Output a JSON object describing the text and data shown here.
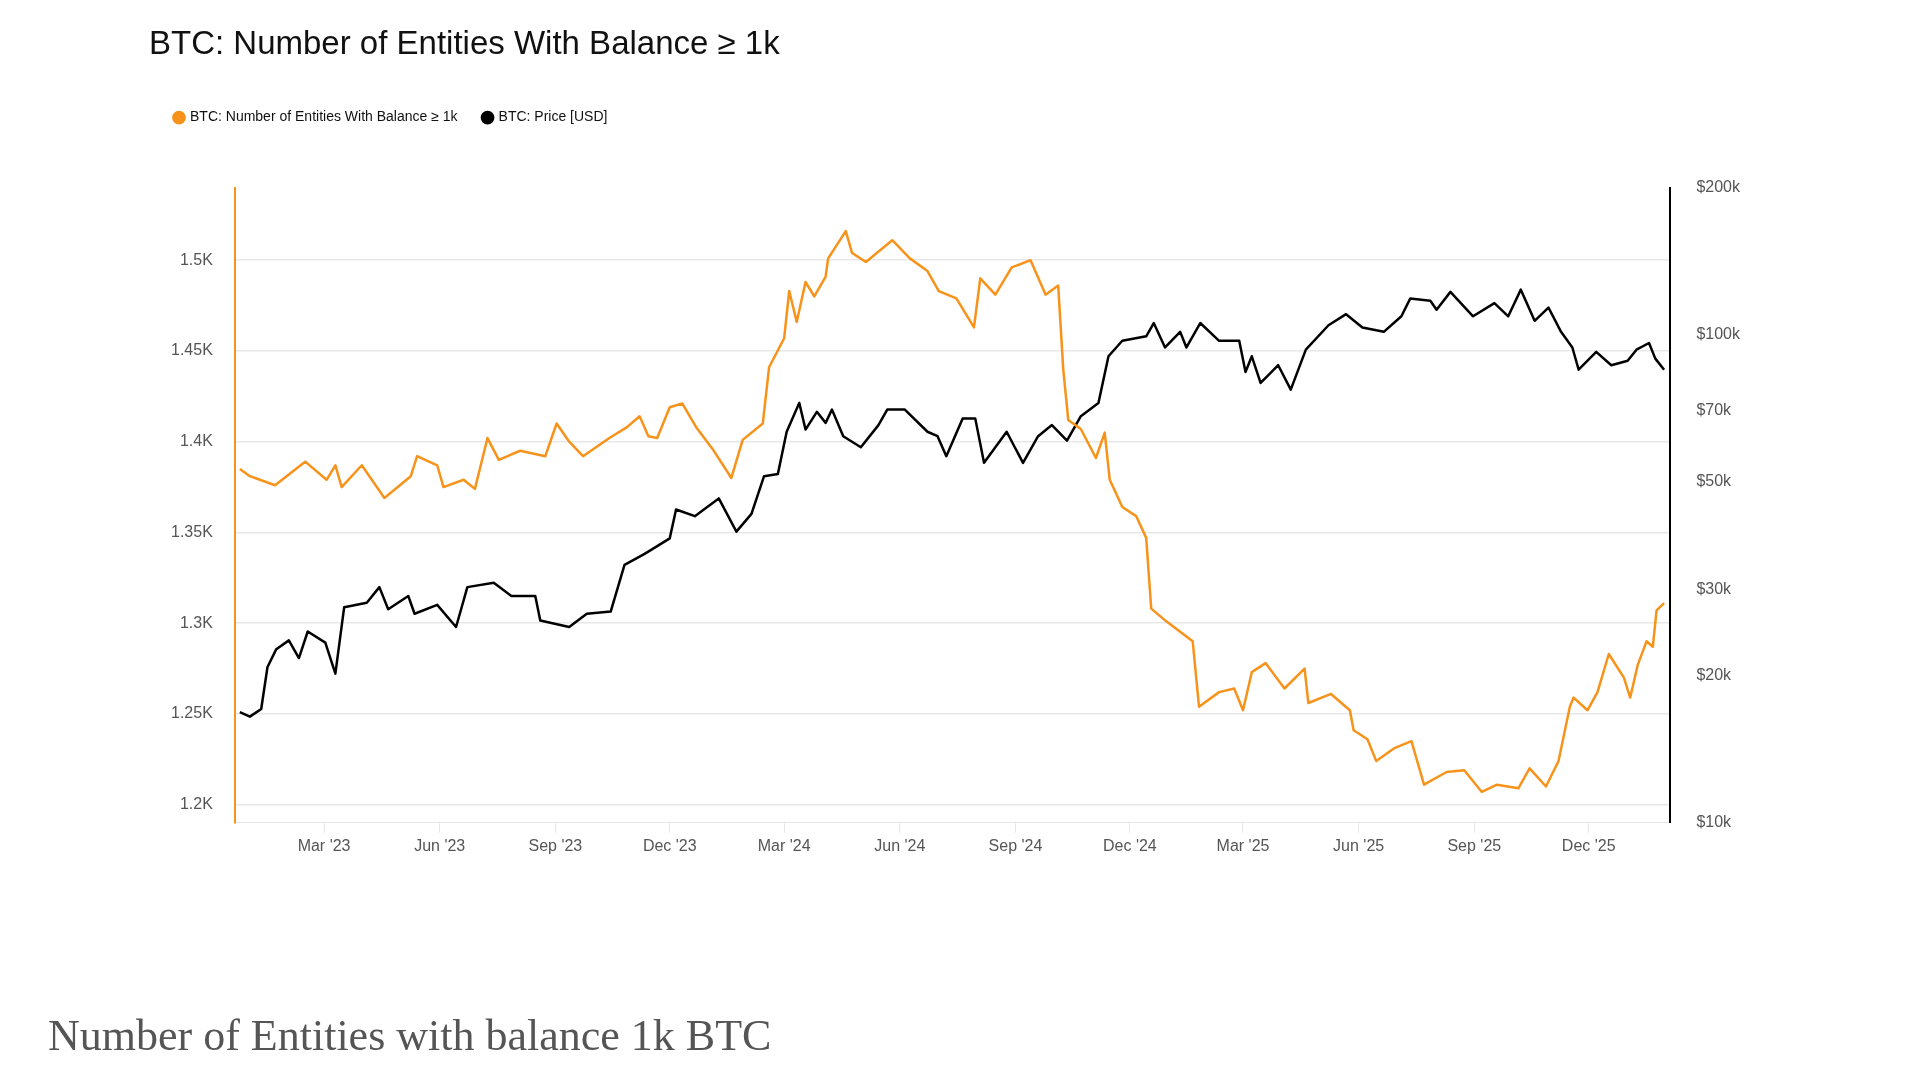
{
  "chart_data": {
    "type": "line",
    "title": "BTC: Number of Entities With Balance ≥ 1k",
    "legend": "top left",
    "grid": "y",
    "marker": "none",
    "line_style": "solid",
    "xlim": [
      "2022-12-20",
      "2026-02-04"
    ],
    "xticks": [
      {
        "value": "2023-03-01",
        "label": "Mar '23"
      },
      {
        "value": "2023-06-01",
        "label": "Jun '23"
      },
      {
        "value": "2023-09-01",
        "label": "Sep '23"
      },
      {
        "value": "2023-12-01",
        "label": "Dec '23"
      },
      {
        "value": "2024-03-01",
        "label": "Mar '24"
      },
      {
        "value": "2024-06-01",
        "label": "Jun '24"
      },
      {
        "value": "2024-09-01",
        "label": "Sep '24"
      },
      {
        "value": "2024-12-01",
        "label": "Dec '24"
      },
      {
        "value": "2025-03-01",
        "label": "Mar '25"
      },
      {
        "value": "2025-06-01",
        "label": "Jun '25"
      },
      {
        "value": "2025-09-01",
        "label": "Sep '25"
      },
      {
        "value": "2025-12-01",
        "label": "Dec '25"
      }
    ],
    "ylim": [
      1190,
      1540
    ],
    "yticks": [
      {
        "value": 1200,
        "label": "1.2K"
      },
      {
        "value": 1250,
        "label": "1.25K"
      },
      {
        "value": 1300,
        "label": "1.3K"
      },
      {
        "value": 1350,
        "label": "1.35K"
      },
      {
        "value": 1400,
        "label": "1.4K"
      },
      {
        "value": 1450,
        "label": "1.45K"
      },
      {
        "value": 1500,
        "label": "1.5K"
      }
    ],
    "log": "y2",
    "y2lim": [
      10000,
      200000
    ],
    "y2ticks": [
      {
        "value": 10000,
        "label": "$10k"
      },
      {
        "value": 20000,
        "label": "$20k"
      },
      {
        "value": 30000,
        "label": "$30k"
      },
      {
        "value": 50000,
        "label": "$50k"
      },
      {
        "value": 70000,
        "label": "$70k"
      },
      {
        "value": 100000,
        "label": "$100k"
      },
      {
        "value": 200000,
        "label": "$200k"
      }
    ],
    "annotations": [
      "Number of Entities with balance 1k BTC"
    ],
    "series": [
      {
        "name": "BTC: Number of Entities With Balance ≥ 1k",
        "color": "#f7931a",
        "axis": "y",
        "x": [
          "2022-12-24",
          "2023-01-01",
          "2023-01-21",
          "2023-02-14",
          "2023-03-03",
          "2023-03-10",
          "2023-03-15",
          "2023-03-31",
          "2023-04-18",
          "2023-05-09",
          "2023-05-14",
          "2023-05-30",
          "2023-06-04",
          "2023-06-20",
          "2023-06-29",
          "2023-07-09",
          "2023-07-18",
          "2023-08-04",
          "2023-08-24",
          "2023-09-02",
          "2023-09-12",
          "2023-09-23",
          "2023-10-14",
          "2023-10-28",
          "2023-11-07",
          "2023-11-14",
          "2023-11-21",
          "2023-12-01",
          "2023-12-11",
          "2023-12-22",
          "2024-01-04",
          "2024-01-19",
          "2024-01-28",
          "2024-02-13",
          "2024-02-18",
          "2024-03-01",
          "2024-03-05",
          "2024-03-11",
          "2024-03-18",
          "2024-03-25",
          "2024-04-03",
          "2024-04-05",
          "2024-04-19",
          "2024-04-24",
          "2024-05-05",
          "2024-05-26",
          "2024-06-09",
          "2024-06-23",
          "2024-07-02",
          "2024-07-16",
          "2024-07-30",
          "2024-08-04",
          "2024-08-16",
          "2024-08-29",
          "2024-09-13",
          "2024-09-25",
          "2024-10-05",
          "2024-10-09",
          "2024-10-13",
          "2024-10-23",
          "2024-11-04",
          "2024-11-11",
          "2024-11-15",
          "2024-11-25",
          "2024-12-06",
          "2024-12-14",
          "2024-12-18",
          "2024-12-30",
          "2025-01-20",
          "2025-01-25",
          "2025-02-10",
          "2025-02-22",
          "2025-03-01",
          "2025-03-08",
          "2025-03-19",
          "2025-04-03",
          "2025-04-19",
          "2025-04-22",
          "2025-05-10",
          "2025-05-25",
          "2025-05-28",
          "2025-06-08",
          "2025-06-15",
          "2025-06-29",
          "2025-07-13",
          "2025-07-23",
          "2025-08-10",
          "2025-08-24",
          "2025-09-07",
          "2025-09-19",
          "2025-10-06",
          "2025-10-15",
          "2025-10-28",
          "2025-11-07",
          "2025-11-16",
          "2025-11-19",
          "2025-11-30",
          "2025-12-08",
          "2025-12-17",
          "2025-12-29",
          "2026-01-03",
          "2026-01-09",
          "2026-01-16",
          "2026-01-21",
          "2026-01-24",
          "2026-01-30"
        ],
        "values": [
          1385,
          1381,
          1376,
          1389,
          1379,
          1387,
          1375,
          1387,
          1369,
          1381,
          1392,
          1387,
          1375,
          1379,
          1374,
          1402,
          1390,
          1395,
          1392,
          1410,
          1400,
          1392,
          1402,
          1408,
          1414,
          1403,
          1402,
          1419,
          1421,
          1408,
          1396,
          1380,
          1401,
          1410,
          1441,
          1457,
          1483,
          1466,
          1488,
          1480,
          1491,
          1501,
          1516,
          1504,
          1499,
          1511,
          1501,
          1494,
          1483,
          1479,
          1463,
          1490,
          1481,
          1496,
          1500,
          1481,
          1486,
          1440,
          1412,
          1407,
          1391,
          1405,
          1379,
          1364,
          1359,
          1347,
          1308,
          1301,
          1290,
          1254,
          1262,
          1264,
          1252,
          1273,
          1278,
          1264,
          1275,
          1256,
          1261,
          1252,
          1241,
          1236,
          1224,
          1231,
          1235,
          1211,
          1218,
          1219,
          1207,
          1211,
          1209,
          1220,
          1210,
          1224,
          1254,
          1259,
          1252,
          1262,
          1283,
          1270,
          1259,
          1277,
          1290,
          1287,
          1307,
          1311
        ]
      },
      {
        "name": "BTC: Price [USD]",
        "color": "#000000",
        "axis": "y2",
        "x": [
          "2022-12-24",
          "2023-01-01",
          "2023-01-10",
          "2023-01-15",
          "2023-01-22",
          "2023-02-01",
          "2023-02-09",
          "2023-02-16",
          "2023-03-02",
          "2023-03-10",
          "2023-03-17",
          "2023-04-04",
          "2023-04-14",
          "2023-04-21",
          "2023-05-07",
          "2023-05-12",
          "2023-05-30",
          "2023-06-14",
          "2023-06-23",
          "2023-07-14",
          "2023-07-28",
          "2023-08-16",
          "2023-08-20",
          "2023-09-12",
          "2023-09-26",
          "2023-10-15",
          "2023-10-26",
          "2023-11-11",
          "2023-12-01",
          "2023-12-06",
          "2023-12-21",
          "2024-01-09",
          "2024-01-23",
          "2024-02-04",
          "2024-02-14",
          "2024-02-25",
          "2024-03-03",
          "2024-03-13",
          "2024-03-18",
          "2024-03-27",
          "2024-04-03",
          "2024-04-08",
          "2024-04-17",
          "2024-05-01",
          "2024-05-15",
          "2024-05-22",
          "2024-06-05",
          "2024-06-23",
          "2024-07-01",
          "2024-07-08",
          "2024-07-21",
          "2024-07-31",
          "2024-08-07",
          "2024-08-25",
          "2024-09-07",
          "2024-09-19",
          "2024-09-30",
          "2024-10-12",
          "2024-10-23",
          "2024-11-06",
          "2024-11-14",
          "2024-11-25",
          "2024-12-14",
          "2024-12-20",
          "2024-12-29",
          "2025-01-10",
          "2025-01-15",
          "2025-01-26",
          "2025-02-10",
          "2025-02-26",
          "2025-03-03",
          "2025-03-08",
          "2025-03-15",
          "2025-03-29",
          "2025-04-08",
          "2025-04-20",
          "2025-05-08",
          "2025-05-22",
          "2025-06-04",
          "2025-06-21",
          "2025-07-05",
          "2025-07-12",
          "2025-07-28",
          "2025-08-02",
          "2025-08-13",
          "2025-08-31",
          "2025-09-17",
          "2025-09-28",
          "2025-10-08",
          "2025-10-19",
          "2025-10-30",
          "2025-11-09",
          "2025-11-18",
          "2025-11-23",
          "2025-12-07",
          "2025-12-19",
          "2026-01-01",
          "2026-01-08",
          "2026-01-18",
          "2026-01-23",
          "2026-01-30"
        ],
        "values": [
          16850,
          16500,
          17100,
          20850,
          22680,
          23640,
          21750,
          24650,
          23390,
          20210,
          27650,
          28240,
          30390,
          27370,
          29140,
          26800,
          27950,
          25180,
          30390,
          31030,
          29140,
          29140,
          25970,
          25180,
          26800,
          27080,
          33740,
          35540,
          38250,
          43830,
          42470,
          46180,
          39490,
          42940,
          51290,
          51830,
          63230,
          72450,
          63890,
          69470,
          65940,
          70200,
          61920,
          58760,
          65250,
          70200,
          70200,
          63230,
          61920,
          56350,
          67350,
          67350,
          54610,
          63230,
          54610,
          61920,
          65250,
          60640,
          68050,
          72450,
          90270,
          97110,
          99170,
          105600,
          94100,
          101300,
          94100,
          105600,
          97110,
          97110,
          83840,
          90270,
          79590,
          86550,
          77140,
          93130,
          104500,
          110100,
          103400,
          101300,
          109000,
          118500,
          117300,
          112400,
          122300,
          109000,
          116000,
          109000,
          123600,
          106700,
          113600,
          101300,
          94100,
          84740,
          92160,
          86550,
          88390,
          93130,
          96100,
          89280,
          84740
        ]
      }
    ]
  }
}
